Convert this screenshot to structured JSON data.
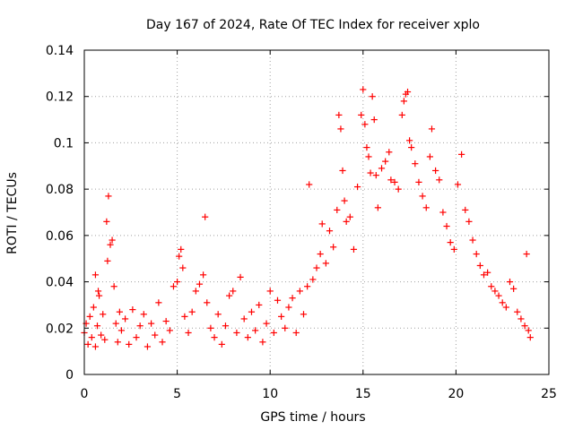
{
  "chart_data": {
    "type": "scatter",
    "title": "Day 167 of 2024, Rate Of TEC Index for receiver xplo",
    "xlabel": "GPS time / hours",
    "ylabel": "ROTI / TECUs",
    "xlim": [
      0,
      25
    ],
    "ylim": [
      0,
      0.14
    ],
    "xticks": [
      0,
      5,
      10,
      15,
      20,
      25
    ],
    "yticks": [
      0,
      0.02,
      0.04,
      0.06,
      0.08,
      0.1,
      0.12,
      0.14
    ],
    "xtick_labels": [
      "0",
      "5",
      "10",
      "15",
      "20",
      "25"
    ],
    "ytick_labels": [
      "0",
      "0.02",
      "0.04",
      "0.06",
      "0.08",
      "0.1",
      "0.12",
      "0.14"
    ],
    "grid": true,
    "marker": "+",
    "series": [
      {
        "name": "ROTI",
        "color": "#ff0000",
        "points": [
          [
            0.0,
            0.018
          ],
          [
            0.1,
            0.022
          ],
          [
            0.2,
            0.013
          ],
          [
            0.3,
            0.025
          ],
          [
            0.4,
            0.016
          ],
          [
            0.5,
            0.029
          ],
          [
            0.6,
            0.012
          ],
          [
            0.7,
            0.021
          ],
          [
            0.8,
            0.034
          ],
          [
            0.9,
            0.017
          ],
          [
            1.0,
            0.026
          ],
          [
            1.1,
            0.015
          ],
          [
            1.2,
            0.066
          ],
          [
            1.3,
            0.077
          ],
          [
            1.4,
            0.056
          ],
          [
            1.5,
            0.058
          ],
          [
            1.6,
            0.038
          ],
          [
            1.7,
            0.022
          ],
          [
            1.8,
            0.014
          ],
          [
            1.9,
            0.027
          ],
          [
            0.6,
            0.043
          ],
          [
            1.25,
            0.049
          ],
          [
            0.75,
            0.036
          ],
          [
            2.0,
            0.019
          ],
          [
            2.2,
            0.024
          ],
          [
            2.4,
            0.013
          ],
          [
            2.6,
            0.028
          ],
          [
            2.8,
            0.016
          ],
          [
            3.0,
            0.021
          ],
          [
            3.2,
            0.026
          ],
          [
            3.4,
            0.012
          ],
          [
            3.6,
            0.022
          ],
          [
            3.8,
            0.017
          ],
          [
            4.0,
            0.031
          ],
          [
            4.2,
            0.014
          ],
          [
            4.4,
            0.023
          ],
          [
            4.6,
            0.019
          ],
          [
            4.8,
            0.038
          ],
          [
            5.0,
            0.04
          ],
          [
            5.1,
            0.051
          ],
          [
            5.2,
            0.054
          ],
          [
            5.3,
            0.046
          ],
          [
            5.4,
            0.025
          ],
          [
            5.6,
            0.018
          ],
          [
            5.8,
            0.027
          ],
          [
            6.0,
            0.036
          ],
          [
            6.2,
            0.039
          ],
          [
            6.4,
            0.043
          ],
          [
            6.5,
            0.068
          ],
          [
            6.6,
            0.031
          ],
          [
            6.8,
            0.02
          ],
          [
            7.0,
            0.016
          ],
          [
            7.2,
            0.026
          ],
          [
            7.4,
            0.013
          ],
          [
            7.6,
            0.021
          ],
          [
            7.8,
            0.034
          ],
          [
            8.0,
            0.036
          ],
          [
            8.2,
            0.018
          ],
          [
            8.4,
            0.042
          ],
          [
            8.6,
            0.024
          ],
          [
            8.8,
            0.016
          ],
          [
            9.0,
            0.027
          ],
          [
            9.2,
            0.019
          ],
          [
            9.4,
            0.03
          ],
          [
            9.6,
            0.014
          ],
          [
            9.8,
            0.022
          ],
          [
            10.0,
            0.036
          ],
          [
            10.2,
            0.018
          ],
          [
            10.4,
            0.032
          ],
          [
            10.6,
            0.025
          ],
          [
            10.8,
            0.02
          ],
          [
            11.0,
            0.029
          ],
          [
            11.2,
            0.033
          ],
          [
            11.4,
            0.018
          ],
          [
            11.6,
            0.036
          ],
          [
            11.8,
            0.026
          ],
          [
            12.0,
            0.038
          ],
          [
            12.1,
            0.082
          ],
          [
            12.3,
            0.041
          ],
          [
            12.5,
            0.046
          ],
          [
            12.7,
            0.052
          ],
          [
            12.8,
            0.065
          ],
          [
            13.0,
            0.048
          ],
          [
            13.2,
            0.062
          ],
          [
            13.4,
            0.055
          ],
          [
            13.6,
            0.071
          ],
          [
            13.7,
            0.112
          ],
          [
            13.8,
            0.106
          ],
          [
            13.9,
            0.088
          ],
          [
            14.0,
            0.075
          ],
          [
            14.1,
            0.066
          ],
          [
            14.3,
            0.068
          ],
          [
            14.5,
            0.054
          ],
          [
            14.7,
            0.081
          ],
          [
            14.9,
            0.112
          ],
          [
            15.0,
            0.123
          ],
          [
            15.1,
            0.108
          ],
          [
            15.2,
            0.098
          ],
          [
            15.3,
            0.094
          ],
          [
            15.4,
            0.087
          ],
          [
            15.5,
            0.12
          ],
          [
            15.6,
            0.11
          ],
          [
            15.7,
            0.086
          ],
          [
            15.8,
            0.072
          ],
          [
            16.0,
            0.089
          ],
          [
            16.2,
            0.092
          ],
          [
            16.4,
            0.096
          ],
          [
            16.5,
            0.084
          ],
          [
            16.7,
            0.083
          ],
          [
            16.9,
            0.08
          ],
          [
            17.1,
            0.112
          ],
          [
            17.2,
            0.118
          ],
          [
            17.3,
            0.121
          ],
          [
            17.4,
            0.122
          ],
          [
            17.5,
            0.101
          ],
          [
            17.6,
            0.098
          ],
          [
            17.8,
            0.091
          ],
          [
            18.0,
            0.083
          ],
          [
            18.2,
            0.077
          ],
          [
            18.4,
            0.072
          ],
          [
            18.6,
            0.094
          ],
          [
            18.7,
            0.106
          ],
          [
            18.9,
            0.088
          ],
          [
            19.1,
            0.084
          ],
          [
            19.3,
            0.07
          ],
          [
            19.5,
            0.064
          ],
          [
            19.7,
            0.057
          ],
          [
            19.9,
            0.054
          ],
          [
            20.1,
            0.082
          ],
          [
            20.3,
            0.095
          ],
          [
            20.5,
            0.071
          ],
          [
            20.7,
            0.066
          ],
          [
            20.9,
            0.058
          ],
          [
            21.1,
            0.052
          ],
          [
            21.3,
            0.047
          ],
          [
            21.5,
            0.043
          ],
          [
            21.7,
            0.044
          ],
          [
            21.9,
            0.038
          ],
          [
            22.1,
            0.036
          ],
          [
            22.3,
            0.034
          ],
          [
            22.5,
            0.031
          ],
          [
            22.7,
            0.029
          ],
          [
            22.9,
            0.04
          ],
          [
            23.1,
            0.037
          ],
          [
            23.3,
            0.027
          ],
          [
            23.5,
            0.024
          ],
          [
            23.7,
            0.021
          ],
          [
            23.8,
            0.052
          ],
          [
            23.9,
            0.019
          ],
          [
            24.0,
            0.016
          ]
        ]
      }
    ]
  }
}
